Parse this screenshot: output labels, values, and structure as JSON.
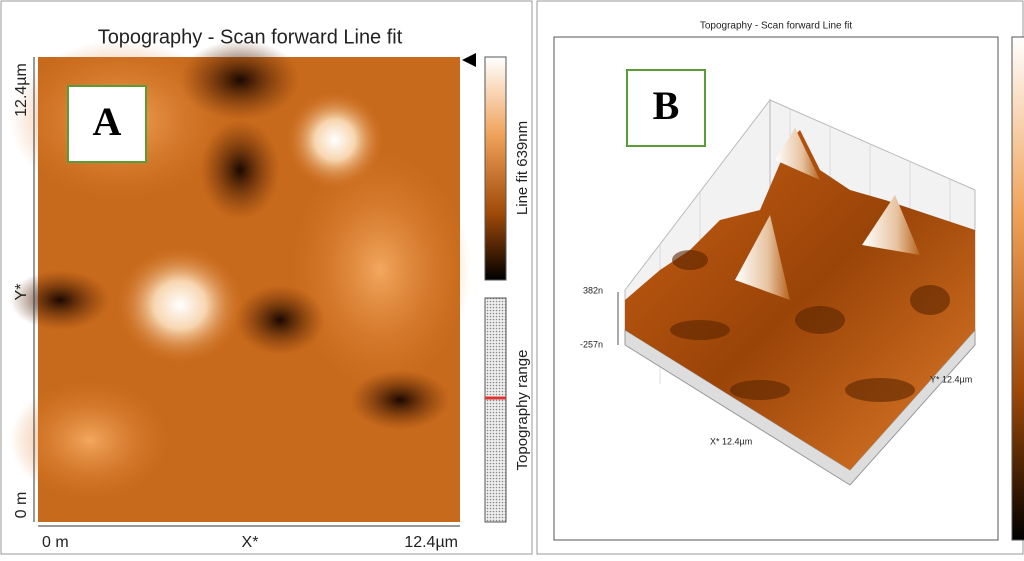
{
  "panels": [
    {
      "label": "A",
      "title": "Topography - Scan forward   Line fit",
      "y_axis": {
        "top": "12.4µm",
        "middle": "Y*",
        "bottom": "0 m"
      },
      "x_axis": {
        "left": "0 m",
        "middle": "X*",
        "right": "12.4µm"
      },
      "colorbar_label": "Line fit 639nm",
      "range_label": "Topography range"
    },
    {
      "label": "B",
      "title": "Topography - Scan forward   Line fit",
      "z_labels": [
        "382n",
        "-257n"
      ],
      "x_label": "X* 12.4µm",
      "y_label": "Y* 12.4µm"
    }
  ]
}
